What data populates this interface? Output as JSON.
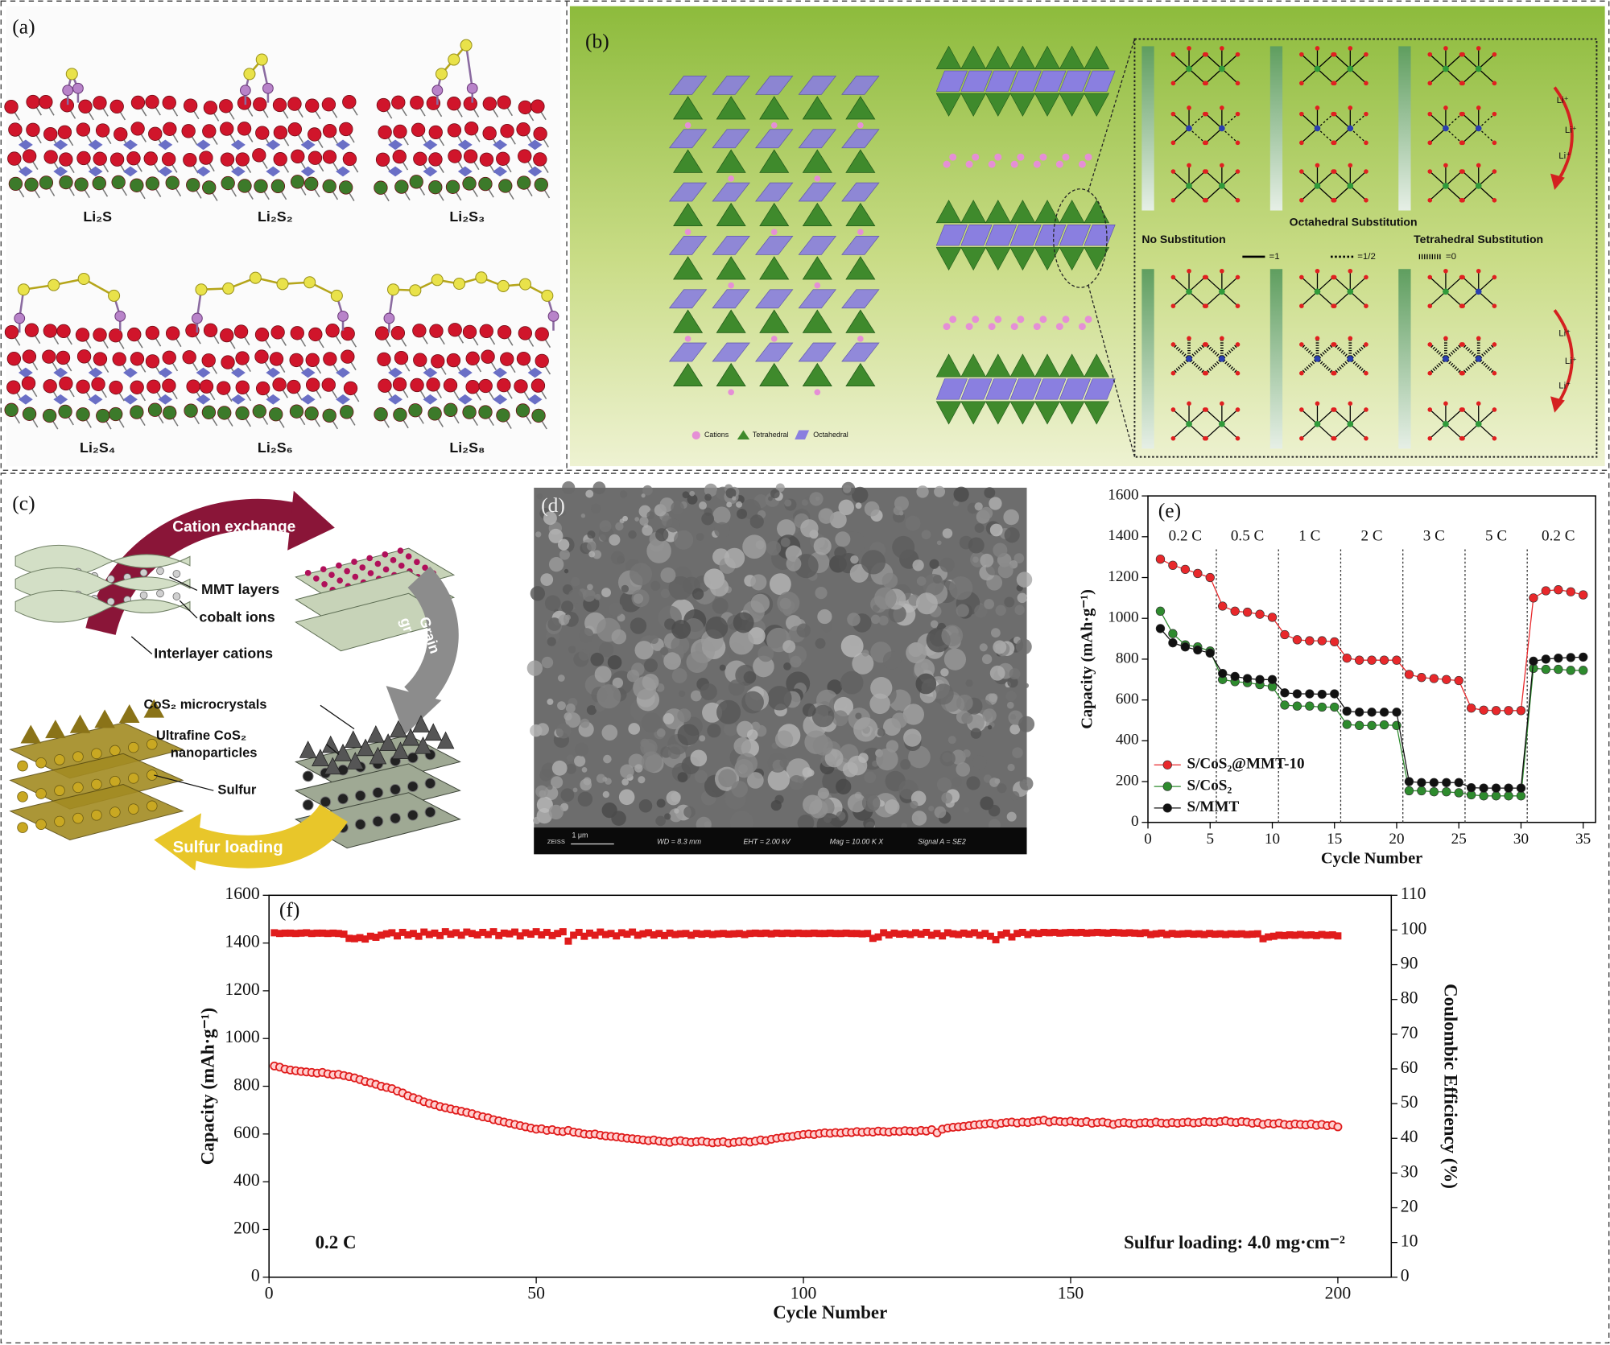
{
  "panels": {
    "a": {
      "label": "(a)",
      "structures": [
        "Li₂S",
        "Li₂S₂",
        "Li₂S₃",
        "Li₂S₄",
        "Li₂S₆",
        "Li₂S₈"
      ]
    },
    "b": {
      "label": "(b)",
      "octahedral": "Octahedral Substitution",
      "none": "No Substitution",
      "tetrahedral": "Tetrahedral Substitution",
      "bond_legend": [
        "=1",
        "=1/2",
        "=0"
      ],
      "ion": "Li⁺",
      "legend": [
        "Cations",
        "Tetrahedral",
        "Octahedral"
      ]
    },
    "c": {
      "label": "(c)",
      "exchange": "Cation exchange",
      "layers": "MMT layers",
      "cobalt": "cobalt ions",
      "interlayer": "Interlayer cations",
      "growth": [
        "Grain",
        "growth"
      ],
      "microcrystals": "CoS₂ microcrystals",
      "nanoparticles": [
        "Ultrafine CoS₂",
        "nanoparticles"
      ],
      "sulfur": "Sulfur",
      "loading": "Sulfur loading"
    },
    "d": {
      "label": "(d)",
      "brand": "ZEISS",
      "scale_bar": "1 μm",
      "info": [
        "WD = 8.3 mm",
        "EHT = 2.00 kV",
        "Mag = 10.00 K X",
        "Signal A = SE2"
      ]
    }
  },
  "chart_data": [
    {
      "type": "line",
      "label": "(e)",
      "xlabel": "Cycle Number",
      "ylabel": "Capacity (mAh·g⁻¹)",
      "xlim": [
        0,
        36
      ],
      "xticks": [
        0,
        5,
        10,
        15,
        20,
        25,
        30,
        35
      ],
      "ylim": [
        0,
        1600
      ],
      "yticks": [
        0,
        200,
        400,
        600,
        800,
        1000,
        1200,
        1400,
        1600
      ],
      "grid": false,
      "legend": "lower left",
      "rate_labels": [
        "0.2 C",
        "0.5 C",
        "1 C",
        "2 C",
        "3 C",
        "5 C",
        "0.2 C"
      ],
      "x": [
        1,
        2,
        3,
        4,
        5,
        6,
        7,
        8,
        9,
        10,
        11,
        12,
        13,
        14,
        15,
        16,
        17,
        18,
        19,
        20,
        21,
        22,
        23,
        24,
        25,
        26,
        27,
        28,
        29,
        30,
        31,
        32,
        33,
        34,
        35
      ],
      "series": [
        {
          "name": "S/CoS₂@MMT-10",
          "color": "#e8282b",
          "marker": "circle",
          "line": true,
          "values": [
            1290,
            1260,
            1240,
            1220,
            1200,
            1060,
            1035,
            1030,
            1020,
            1005,
            920,
            895,
            890,
            890,
            885,
            805,
            795,
            795,
            795,
            795,
            725,
            710,
            705,
            700,
            695,
            560,
            550,
            548,
            548,
            548,
            1100,
            1135,
            1140,
            1130,
            1115
          ]
        },
        {
          "name": "S/CoS₂",
          "color": "#2e8b2e",
          "marker": "circle",
          "line": true,
          "values": [
            1035,
            925,
            870,
            860,
            840,
            700,
            690,
            685,
            675,
            665,
            575,
            570,
            570,
            565,
            565,
            480,
            475,
            475,
            478,
            475,
            155,
            155,
            150,
            150,
            145,
            135,
            130,
            130,
            130,
            130,
            755,
            750,
            750,
            745,
            745
          ]
        },
        {
          "name": "S/MMT",
          "color": "#111111",
          "marker": "circle",
          "line": true,
          "values": [
            950,
            880,
            860,
            845,
            830,
            730,
            715,
            705,
            700,
            700,
            635,
            630,
            630,
            628,
            630,
            545,
            540,
            540,
            540,
            540,
            200,
            195,
            195,
            195,
            195,
            170,
            168,
            168,
            168,
            168,
            790,
            800,
            805,
            808,
            810
          ]
        }
      ]
    },
    {
      "type": "scatter",
      "label": "(f)",
      "xlabel": "Cycle Number",
      "ylabel": "Capacity (mAh·g⁻¹)",
      "y2label": "Coulombic Efficiency (%)",
      "xlim": [
        0,
        210
      ],
      "xticks": [
        0,
        50,
        100,
        150,
        200
      ],
      "ylim": [
        0,
        1600
      ],
      "yticks": [
        0,
        200,
        400,
        600,
        800,
        1000,
        1200,
        1400,
        1600
      ],
      "y2lim": [
        0,
        110
      ],
      "y2ticks": [
        0,
        10,
        20,
        30,
        40,
        50,
        60,
        70,
        80,
        90,
        100,
        110
      ],
      "grid": false,
      "annotations": [
        "0.2 C",
        "Sulfur loading: 4.0 mg·cm⁻²"
      ],
      "x": [
        1,
        2,
        3,
        4,
        5,
        6,
        7,
        8,
        9,
        10,
        11,
        12,
        13,
        14,
        15,
        16,
        17,
        18,
        19,
        20,
        21,
        22,
        23,
        24,
        25,
        26,
        27,
        28,
        29,
        30,
        31,
        32,
        33,
        34,
        35,
        36,
        37,
        38,
        39,
        40,
        41,
        42,
        43,
        44,
        45,
        46,
        47,
        48,
        49,
        50,
        51,
        52,
        53,
        54,
        55,
        56,
        57,
        58,
        59,
        60,
        61,
        62,
        63,
        64,
        65,
        66,
        67,
        68,
        69,
        70,
        71,
        72,
        73,
        74,
        75,
        76,
        77,
        78,
        79,
        80,
        81,
        82,
        83,
        84,
        85,
        86,
        87,
        88,
        89,
        90,
        91,
        92,
        93,
        94,
        95,
        96,
        97,
        98,
        99,
        100,
        101,
        102,
        103,
        104,
        105,
        106,
        107,
        108,
        109,
        110,
        111,
        112,
        113,
        114,
        115,
        116,
        117,
        118,
        119,
        120,
        121,
        122,
        123,
        124,
        125,
        126,
        127,
        128,
        129,
        130,
        131,
        132,
        133,
        134,
        135,
        136,
        137,
        138,
        139,
        140,
        141,
        142,
        143,
        144,
        145,
        146,
        147,
        148,
        149,
        150,
        151,
        152,
        153,
        154,
        155,
        156,
        157,
        158,
        159,
        160,
        161,
        162,
        163,
        164,
        165,
        166,
        167,
        168,
        169,
        170,
        171,
        172,
        173,
        174,
        175,
        176,
        177,
        178,
        179,
        180,
        181,
        182,
        183,
        184,
        185,
        186,
        187,
        188,
        189,
        190,
        191,
        192,
        193,
        194,
        195,
        196,
        197,
        198,
        199,
        200
      ],
      "series": [
        {
          "color": "#e01c1c",
          "marker": "circle-open",
          "line": false,
          "values": [
            885,
            880,
            872,
            868,
            865,
            862,
            860,
            858,
            855,
            858,
            852,
            848,
            850,
            845,
            840,
            835,
            828,
            820,
            815,
            808,
            800,
            795,
            790,
            780,
            772,
            760,
            752,
            745,
            735,
            728,
            722,
            715,
            710,
            705,
            700,
            695,
            690,
            685,
            678,
            672,
            668,
            660,
            655,
            650,
            645,
            640,
            635,
            630,
            625,
            620,
            622,
            615,
            618,
            612,
            610,
            615,
            608,
            605,
            600,
            598,
            600,
            595,
            592,
            590,
            588,
            585,
            582,
            580,
            578,
            575,
            572,
            575,
            570,
            568,
            565,
            570,
            572,
            568,
            565,
            568,
            570,
            566,
            563,
            565,
            568,
            562,
            565,
            568,
            570,
            566,
            570,
            575,
            572,
            578,
            582,
            585,
            588,
            590,
            595,
            598,
            600,
            598,
            602,
            605,
            603,
            606,
            604,
            608,
            606,
            610,
            607,
            610,
            608,
            612,
            610,
            608,
            612,
            610,
            614,
            612,
            610,
            615,
            612,
            618,
            605,
            620,
            625,
            628,
            630,
            632,
            635,
            638,
            640,
            642,
            645,
            640,
            645,
            648,
            650,
            646,
            650,
            648,
            652,
            655,
            658,
            650,
            655,
            652,
            650,
            654,
            650,
            648,
            652,
            645,
            648,
            650,
            646,
            640,
            645,
            648,
            645,
            642,
            646,
            648,
            645,
            650,
            646,
            644,
            648,
            645,
            648,
            650,
            646,
            648,
            652,
            650,
            648,
            652,
            655,
            650,
            648,
            652,
            650,
            645,
            648,
            640,
            645,
            642,
            646,
            640,
            638,
            642,
            640,
            638,
            642,
            636,
            640,
            635,
            638,
            630
          ]
        },
        {
          "color": "#e01c1c",
          "marker": "square",
          "line": false,
          "axis": "y2",
          "values": [
            99.2,
            99.0,
            99.1,
            99.1,
            99.0,
            99.1,
            99.2,
            99.0,
            99.1,
            99.1,
            99.0,
            99.1,
            99.0,
            98.8,
            97.6,
            97.5,
            97.8,
            97.4,
            98.2,
            97.9,
            98.5,
            98.9,
            99.2,
            98.3,
            99.3,
            98.6,
            99.0,
            98.2,
            99.4,
            98.7,
            99.1,
            98.4,
            99.5,
            98.8,
            99.2,
            98.5,
            99.4,
            99.0,
            98.6,
            99.3,
            98.7,
            99.5,
            98.4,
            99.1,
            98.9,
            99.4,
            98.3,
            99.2,
            98.8,
            99.5,
            98.6,
            99.3,
            98.4,
            99.0,
            99.5,
            96.8,
            98.5,
            99.3,
            98.2,
            99.1,
            98.5,
            99.4,
            98.7,
            99.0,
            98.3,
            99.2,
            98.8,
            99.4,
            98.5,
            98.9,
            99.2,
            98.6,
            99.0,
            98.4,
            99.1,
            98.7,
            98.9,
            99.0,
            98.5,
            99.0,
            98.8,
            99.0,
            98.7,
            98.9,
            99.0,
            98.8,
            98.9,
            99.0,
            98.7,
            99.0,
            99.1,
            99.0,
            99.1,
            98.9,
            99.1,
            99.0,
            99.1,
            99.0,
            99.1,
            99.0,
            99.0,
            99.1,
            99.0,
            99.0,
            99.1,
            99.0,
            99.0,
            99.1,
            99.0,
            99.0,
            98.9,
            99.0,
            97.6,
            98.0,
            99.2,
            98.6,
            99.1,
            98.8,
            99.0,
            98.7,
            99.2,
            98.8,
            99.3,
            98.5,
            99.0,
            98.3,
            99.2,
            98.9,
            98.7,
            99.1,
            98.8,
            99.2,
            98.5,
            99.0,
            98.2,
            97.2,
            98.6,
            99.1,
            98.0,
            99.0,
            99.3,
            98.7,
            99.2,
            99.0,
            99.3,
            99.2,
            99.3,
            99.1,
            99.2,
            99.3,
            99.2,
            99.3,
            99.1,
            99.2,
            99.3,
            99.2,
            99.1,
            99.3,
            99.2,
            99.1,
            99.2,
            99.1,
            99.0,
            99.2,
            98.7,
            98.9,
            99.1,
            98.7,
            99.0,
            98.8,
            98.9,
            99.0,
            98.8,
            98.9,
            98.7,
            99.0,
            98.8,
            98.9,
            98.7,
            98.9,
            98.8,
            98.9,
            98.7,
            98.8,
            98.9,
            97.5,
            98.0,
            98.2,
            98.5,
            98.4,
            98.6,
            98.5,
            98.7,
            98.5,
            98.6,
            98.4,
            98.7,
            98.5,
            98.6,
            98.3
          ]
        }
      ]
    }
  ]
}
